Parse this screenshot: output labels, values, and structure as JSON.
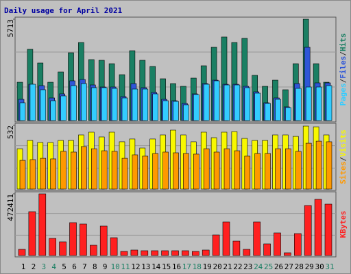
{
  "chart_data": [
    {
      "type": "bar",
      "title": "Daily usage for April 2021",
      "legend_separator": "/",
      "ylim": [
        0,
        5713
      ],
      "yticks": [
        5713
      ],
      "series": [
        {
          "name": "Pages",
          "color": "#33ccff",
          "values": [
            1004,
            2046,
            1737,
            1119,
            1390,
            1969,
            2084,
            1853,
            1853,
            1814,
            1274,
            1776,
            1776,
            1505,
            1119,
            1081,
            888,
            1467,
            2046,
            2239,
            2007,
            2007,
            1853,
            1544,
            965,
            1197,
            733,
            1814,
            1891,
            1891,
            1969
          ]
        },
        {
          "name": "Files",
          "color": "#2e56d8",
          "values": [
            1197,
            2046,
            1969,
            1274,
            1505,
            2239,
            2316,
            2007,
            1891,
            1891,
            1351,
            2084,
            1853,
            1583,
            1197,
            1119,
            965,
            1505,
            2084,
            2277,
            2046,
            2046,
            1930,
            1621,
            1004,
            1274,
            772,
            2084,
            4130,
            2123,
            2123
          ]
        },
        {
          "name": "Hits",
          "color": "#1a7f63",
          "values": [
            2160,
            4015,
            3243,
            2160,
            2740,
            3822,
            4400,
            3435,
            3397,
            3204,
            2586,
            3937,
            3397,
            3050,
            2355,
            2084,
            1930,
            2393,
            3088,
            4130,
            4710,
            4400,
            4632,
            2548,
            1930,
            2277,
            1737,
            3204,
            5713,
            3204,
            2160
          ]
        }
      ]
    },
    {
      "type": "bar",
      "legend_separator": "/",
      "ylim": [
        0,
        532
      ],
      "yticks": [
        532
      ],
      "series": [
        {
          "name": "Sites",
          "color": "#ff9900",
          "values": [
            240,
            246,
            257,
            252,
            315,
            309,
            355,
            337,
            320,
            315,
            257,
            286,
            275,
            297,
            309,
            303,
            297,
            292,
            337,
            309,
            337,
            320,
            275,
            297,
            297,
            337,
            337,
            315,
            383,
            400,
            395
          ]
        },
        {
          "name": "Visits",
          "color": "#f8f800",
          "values": [
            337,
            406,
            389,
            389,
            406,
            406,
            452,
            475,
            435,
            475,
            395,
            418,
            343,
            418,
            452,
            492,
            452,
            395,
            475,
            429,
            475,
            480,
            423,
            406,
            406,
            452,
            452,
            440,
            526,
            520,
            452
          ]
        }
      ]
    },
    {
      "type": "bar",
      "legend_separator": "/",
      "ylim": [
        0,
        472411
      ],
      "yticks": [
        472411
      ],
      "categories": [
        "1",
        "2",
        "3",
        "4",
        "5",
        "6",
        "7",
        "8",
        "9",
        "10",
        "11",
        "12",
        "13",
        "14",
        "15",
        "16",
        "17",
        "18",
        "19",
        "20",
        "21",
        "22",
        "23",
        "24",
        "25",
        "26",
        "27",
        "28",
        "29",
        "30",
        "31"
      ],
      "category_colors": [
        "#000000",
        "#000000",
        "#1a7f63",
        "#1a7f63",
        "#000000",
        "#000000",
        "#000000",
        "#000000",
        "#000000",
        "#1a7f63",
        "#1a7f63",
        "#000000",
        "#000000",
        "#000000",
        "#000000",
        "#000000",
        "#1a7f63",
        "#1a7f63",
        "#000000",
        "#000000",
        "#000000",
        "#000000",
        "#000000",
        "#1a7f63",
        "#1a7f63",
        "#000000",
        "#000000",
        "#000000",
        "#000000",
        "#000000",
        "#1a7f63"
      ],
      "series": [
        {
          "name": "KBytes",
          "color": "#ff2020",
          "values": [
            47241,
            335936,
            472411,
            131225,
            104980,
            251953,
            241455,
            78735,
            225707,
            136474,
            31494,
            41992,
            36744,
            36744,
            36744,
            36744,
            36744,
            31494,
            41992,
            157470,
            257202,
            110230,
            47241,
            257202,
            89233,
            173217,
            20996,
            167968,
            383178,
            430419,
            393685
          ]
        }
      ]
    }
  ]
}
